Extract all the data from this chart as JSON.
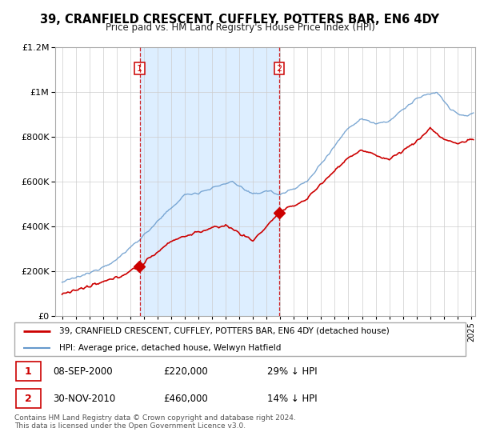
{
  "title": "39, CRANFIELD CRESCENT, CUFFLEY, POTTERS BAR, EN6 4DY",
  "subtitle": "Price paid vs. HM Land Registry's House Price Index (HPI)",
  "sale1_date": 2000.69,
  "sale1_price": 220000,
  "sale1_label": "1",
  "sale1_text_date": "08-SEP-2000",
  "sale1_text_price": "£220,000",
  "sale1_text_pct": "29% ↓ HPI",
  "sale2_date": 2010.92,
  "sale2_price": 460000,
  "sale2_label": "2",
  "sale2_text_date": "30-NOV-2010",
  "sale2_text_price": "£460,000",
  "sale2_text_pct": "14% ↓ HPI",
  "legend_line1": "39, CRANFIELD CRESCENT, CUFFLEY, POTTERS BAR, EN6 4DY (detached house)",
  "legend_line2": "HPI: Average price, detached house, Welwyn Hatfield",
  "footer": "Contains HM Land Registry data © Crown copyright and database right 2024.\nThis data is licensed under the Open Government Licence v3.0.",
  "price_color": "#cc0000",
  "hpi_color": "#6699cc",
  "vline_color": "#cc0000",
  "shade_color": "#ddeeff",
  "ylim_max": 1200000,
  "xlim_start": 1994.5,
  "xlim_end": 2025.3
}
